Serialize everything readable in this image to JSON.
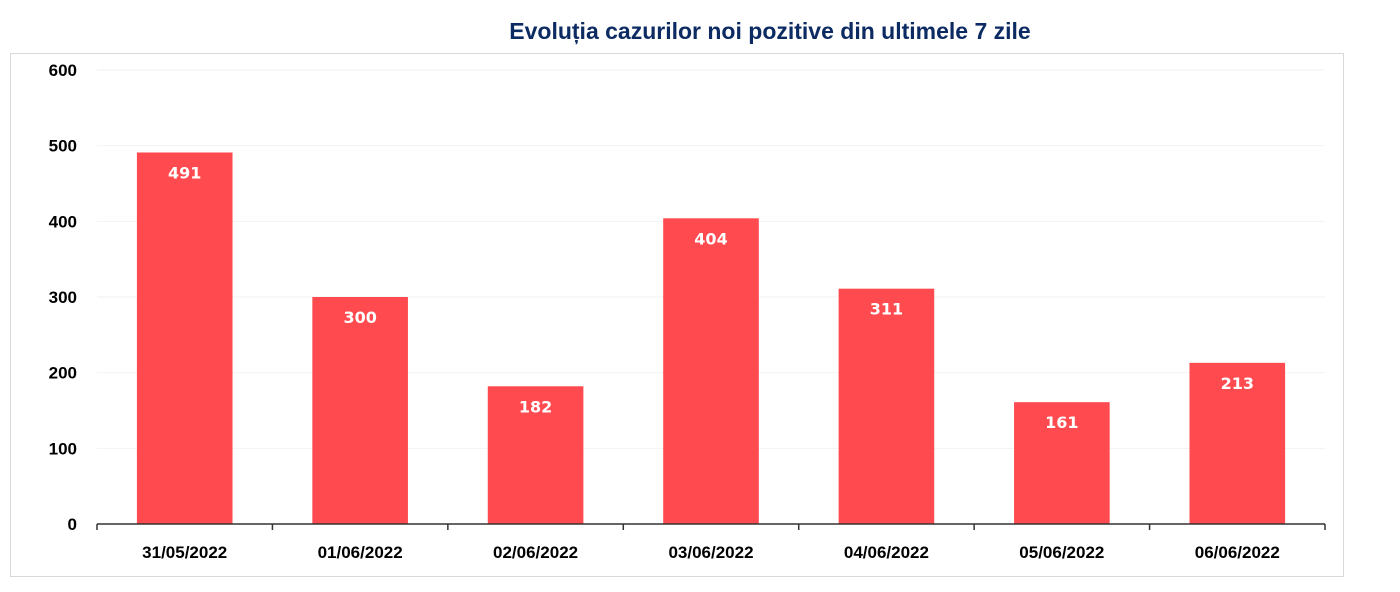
{
  "chart_data": {
    "type": "bar",
    "title": "Evoluția cazurilor noi pozitive din ultimele 7 zile",
    "xlabel": "",
    "ylabel": "",
    "categories": [
      "31/05/2022",
      "01/06/2022",
      "02/06/2022",
      "03/06/2022",
      "04/06/2022",
      "05/06/2022",
      "06/06/2022"
    ],
    "values": [
      491,
      300,
      182,
      404,
      311,
      161,
      213
    ],
    "data_labels": [
      "491",
      "300",
      "182",
      "404",
      "311",
      "161",
      "213"
    ],
    "ylim": [
      0,
      600
    ],
    "yticks": [
      0,
      100,
      200,
      300,
      400,
      500,
      600
    ],
    "ytick_labels": [
      "0",
      "100",
      "200",
      "300",
      "400",
      "500",
      "600"
    ],
    "grid": true,
    "legend": "none",
    "bar_color": "#ff4b4f",
    "title_color": "#0d2b63"
  }
}
